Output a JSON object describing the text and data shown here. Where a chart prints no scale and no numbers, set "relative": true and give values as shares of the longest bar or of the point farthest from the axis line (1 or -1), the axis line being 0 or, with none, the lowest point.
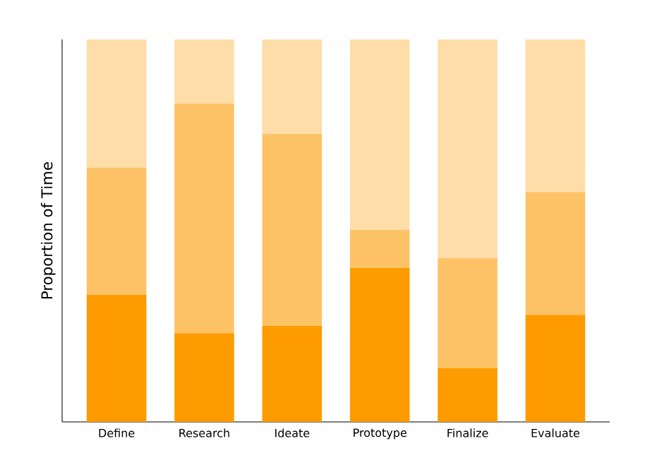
{
  "chart_data": {
    "type": "bar",
    "stacked": true,
    "relative": true,
    "ylabel": "Proportion of Time",
    "categories": [
      "Define",
      "Research",
      "Ideate",
      "Prototype",
      "Finalize",
      "Evaluate"
    ],
    "series": [
      {
        "color": "#fd9b00",
        "values": [
          0.332,
          0.232,
          0.251,
          0.402,
          0.14,
          0.28
        ]
      },
      {
        "color": "#fec266",
        "values": [
          0.332,
          0.601,
          0.502,
          0.1,
          0.288,
          0.321
        ]
      },
      {
        "color": "#fedda8",
        "values": [
          0.336,
          0.167,
          0.247,
          0.498,
          0.572,
          0.399
        ]
      }
    ]
  }
}
